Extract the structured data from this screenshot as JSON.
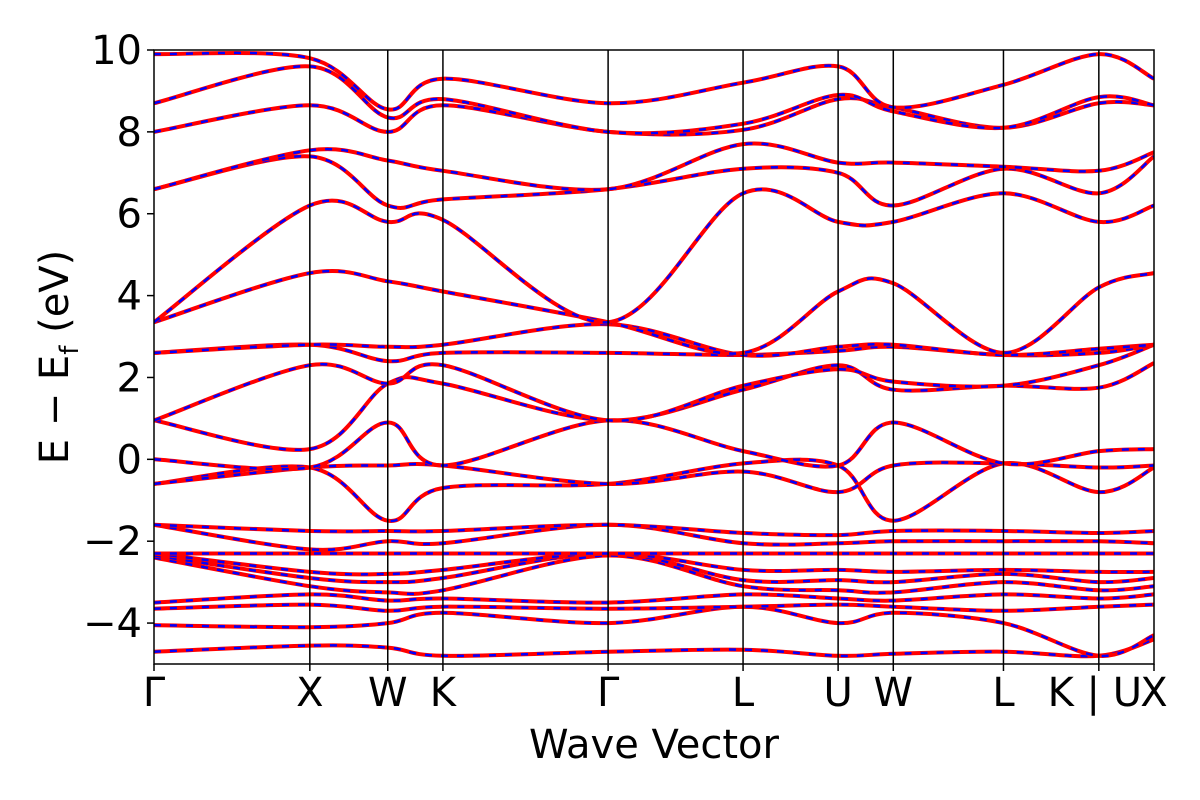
{
  "chart_data": {
    "type": "line",
    "title": "",
    "xlabel": "Wave Vector",
    "ylabel": "E − E",
    "ylabel_subscript": "f",
    "ylabel_suffix": " (eV)",
    "ylim": [
      -5,
      10
    ],
    "yticks": [
      -4,
      -2,
      0,
      2,
      4,
      6,
      8,
      10
    ],
    "ytick_labels": [
      "−4",
      "−2",
      "0",
      "2",
      "4",
      "6",
      "8",
      "10"
    ],
    "kpoints": [
      {
        "label": "Γ",
        "x": 0.0
      },
      {
        "label": "X",
        "x": 1.0
      },
      {
        "label": "W",
        "x": 1.5
      },
      {
        "label": "K",
        "x": 1.854
      },
      {
        "label": "Γ",
        "x": 2.914
      },
      {
        "label": "L",
        "x": 3.78
      },
      {
        "label": "U",
        "x": 4.39
      },
      {
        "label": "W",
        "x": 4.744
      },
      {
        "label": "L",
        "x": 5.451
      },
      {
        "label": "K | U",
        "x": 6.063
      },
      {
        "label": "X",
        "x": 6.417
      }
    ],
    "xlim": [
      0,
      6.417
    ],
    "series_style": [
      {
        "color": "#ff0000",
        "dashed": false
      },
      {
        "color": "#0000ff",
        "dashed": true
      }
    ],
    "bands": [
      {
        "values": [
          -4.7,
          -4.55,
          -4.6,
          -4.8,
          -4.7,
          -4.65,
          -4.8,
          -4.75,
          -4.7,
          -4.8,
          -4.4
        ]
      },
      {
        "values": [
          -4.05,
          -4.1,
          -4.0,
          -3.75,
          -4.0,
          -3.6,
          -4.0,
          -3.75,
          -4.0,
          -4.8,
          -4.3
        ]
      },
      {
        "values": [
          -3.65,
          -3.55,
          -3.7,
          -3.6,
          -3.65,
          -3.6,
          -3.55,
          -3.6,
          -3.7,
          -3.6,
          -3.55
        ]
      },
      {
        "values": [
          -3.5,
          -3.3,
          -3.45,
          -3.4,
          -3.5,
          -3.3,
          -3.4,
          -3.45,
          -3.3,
          -3.4,
          -3.3
        ]
      },
      {
        "values": [
          -2.4,
          -3.1,
          -3.25,
          -3.2,
          -2.35,
          -3.1,
          -3.2,
          -3.25,
          -3.0,
          -3.2,
          -3.1
        ]
      },
      {
        "values": [
          -2.35,
          -2.9,
          -3.0,
          -2.9,
          -2.3,
          -2.95,
          -2.95,
          -3.0,
          -2.8,
          -3.0,
          -2.9
        ]
      },
      {
        "values": [
          -2.3,
          -2.75,
          -2.8,
          -2.7,
          -2.3,
          -2.7,
          -2.7,
          -2.75,
          -2.7,
          -2.75,
          -2.75
        ]
      },
      {
        "values": [
          -2.3,
          -2.3,
          -2.3,
          -2.3,
          -2.3,
          -2.3,
          -2.3,
          -2.3,
          -2.3,
          -2.3,
          -2.3
        ]
      },
      {
        "values": [
          -1.6,
          -2.2,
          -2.0,
          -2.05,
          -1.6,
          -2.05,
          -2.05,
          -2.0,
          -2.0,
          -2.0,
          -2.05
        ]
      },
      {
        "values": [
          -1.6,
          -1.75,
          -1.75,
          -1.75,
          -1.6,
          -1.8,
          -1.85,
          -1.75,
          -1.75,
          -1.8,
          -1.75
        ]
      },
      {
        "values": [
          -0.6,
          -0.2,
          -1.5,
          -0.7,
          -0.6,
          -0.1,
          -0.15,
          -1.5,
          -0.1,
          -0.8,
          -0.2
        ]
      },
      {
        "values": [
          -0.6,
          -0.2,
          -0.15,
          -0.15,
          -0.6,
          -0.3,
          -0.8,
          -0.15,
          -0.1,
          -0.2,
          -0.15
        ]
      },
      {
        "values": [
          0.0,
          -0.2,
          0.9,
          -0.15,
          0.95,
          0.2,
          -0.15,
          0.9,
          -0.1,
          0.2,
          0.25
        ]
      },
      {
        "values": [
          0.95,
          0.25,
          1.85,
          1.85,
          0.95,
          1.7,
          2.3,
          1.7,
          1.8,
          1.75,
          2.35
        ]
      },
      {
        "values": [
          0.95,
          2.3,
          1.85,
          2.3,
          0.95,
          1.8,
          2.2,
          1.9,
          1.8,
          2.3,
          2.8
        ]
      },
      {
        "values": [
          2.6,
          2.8,
          2.4,
          2.6,
          2.6,
          2.55,
          2.65,
          2.75,
          2.55,
          2.6,
          2.8
        ]
      },
      {
        "values": [
          2.6,
          2.8,
          2.75,
          2.8,
          3.3,
          2.55,
          2.75,
          2.8,
          2.55,
          2.7,
          2.8
        ]
      },
      {
        "values": [
          3.35,
          4.55,
          4.35,
          4.1,
          3.35,
          2.6,
          4.1,
          4.3,
          2.6,
          4.2,
          4.55
        ]
      },
      {
        "values": [
          3.35,
          6.2,
          5.8,
          5.85,
          3.35,
          6.5,
          5.8,
          5.8,
          6.5,
          5.8,
          6.2
        ]
      },
      {
        "values": [
          6.6,
          7.4,
          6.2,
          6.35,
          6.6,
          7.1,
          7.0,
          6.2,
          7.1,
          6.5,
          7.4
        ]
      },
      {
        "values": [
          6.6,
          7.55,
          7.3,
          7.05,
          6.6,
          7.7,
          7.25,
          7.25,
          7.15,
          7.05,
          7.5
        ]
      },
      {
        "values": [
          8.0,
          8.65,
          8.0,
          8.65,
          8.0,
          8.05,
          8.8,
          8.6,
          8.1,
          8.7,
          8.65
        ]
      },
      {
        "values": [
          8.7,
          9.6,
          8.35,
          8.8,
          8.0,
          8.2,
          8.9,
          8.5,
          8.1,
          8.85,
          8.65
        ]
      },
      {
        "values": [
          9.9,
          9.8,
          8.55,
          9.3,
          8.7,
          9.2,
          9.6,
          8.6,
          9.15,
          9.9,
          9.3
        ]
      }
    ]
  }
}
